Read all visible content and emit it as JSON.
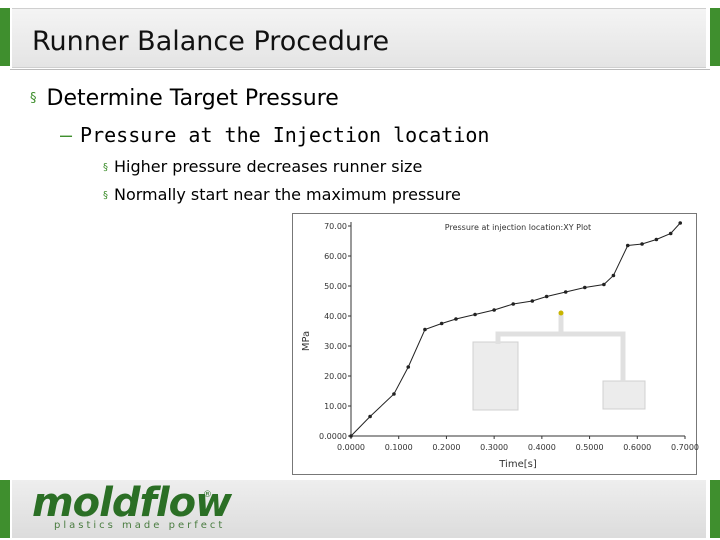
{
  "slide": {
    "title": "Runner Balance Procedure",
    "bullet1": "Determine Target Pressure",
    "bullet1_mark": "§",
    "bullet2": "Pressure at the Injection location",
    "bullet2_mark": "–",
    "bullet3a": "Higher pressure decreases runner size",
    "bullet3b": "Normally start near the maximum pressure",
    "bullet3_mark": "§"
  },
  "logo": {
    "text": "moldflow",
    "reg": "®",
    "tagline": "plastics made perfect"
  },
  "colors": {
    "accent": "#3f8f2e",
    "logo": "#2b6f25"
  },
  "chart_data": {
    "type": "line",
    "title": "Pressure at injection location:XY Plot",
    "xlabel": "Time[s]",
    "ylabel": "MPa",
    "xlim": [
      0,
      0.7
    ],
    "ylim": [
      0,
      70
    ],
    "x_ticks": [
      "0.0000",
      "0.1000",
      "0.2000",
      "0.3000",
      "0.4000",
      "0.5000",
      "0.6000",
      "0.7000"
    ],
    "y_ticks": [
      "0.0000",
      "10.00",
      "20.00",
      "30.00",
      "40.00",
      "50.00",
      "60.00",
      "70.00"
    ],
    "grid": false,
    "series": [
      {
        "x": [
          0.0,
          0.04,
          0.09,
          0.12,
          0.155,
          0.19,
          0.22,
          0.26,
          0.3,
          0.34,
          0.38,
          0.41,
          0.45,
          0.49,
          0.53,
          0.55,
          0.58,
          0.61,
          0.64,
          0.67,
          0.69
        ],
        "y": [
          0.0,
          6.5,
          14.0,
          23.0,
          35.5,
          37.5,
          39.0,
          40.5,
          42.0,
          44.0,
          45.0,
          46.5,
          48.0,
          49.5,
          50.5,
          53.5,
          63.5,
          64.0,
          65.5,
          67.5,
          71.0
        ]
      }
    ]
  }
}
